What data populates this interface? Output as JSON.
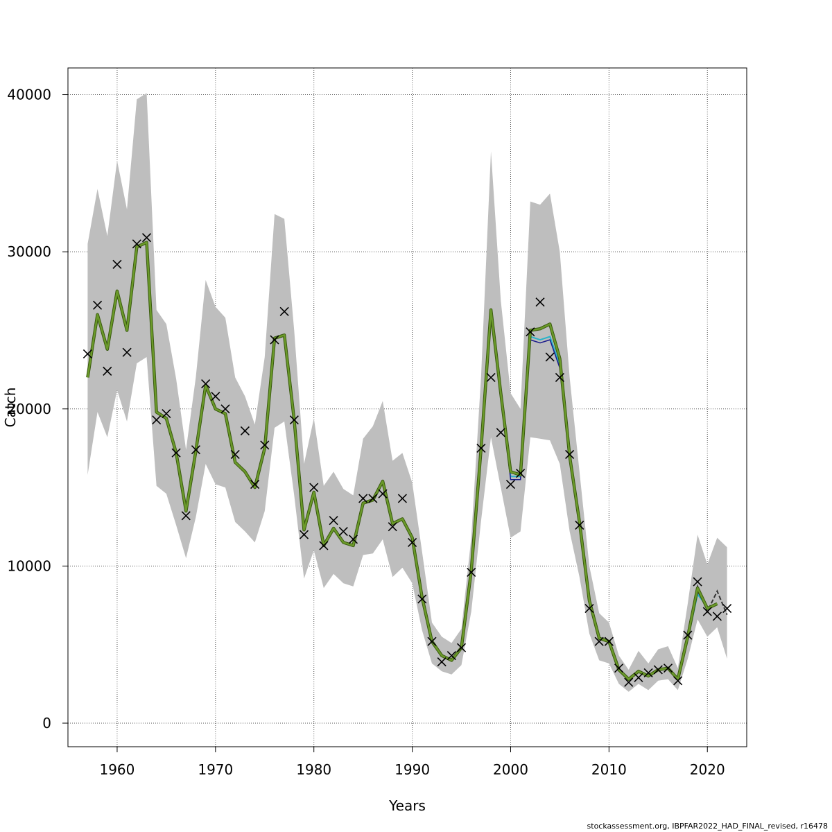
{
  "footer": "stockassessment.org, IBPFAR2022_HAD_FINAL_revised, r16478",
  "colors": {
    "band": "#bebebe",
    "main_line": "#6b9a2a",
    "main_line_outline": "#3a5a10",
    "alt_line_1": "#1a1a8c",
    "alt_line_2": "#29b3c9",
    "observed_marker": "#000000",
    "grid": "#555555"
  },
  "chart_data": {
    "type": "line",
    "xlabel": "Years",
    "ylabel": "Catch",
    "xlim": [
      1955,
      2024
    ],
    "ylim": [
      -1500,
      41700
    ],
    "xticks": [
      1960,
      1970,
      1980,
      1990,
      2000,
      2010,
      2020
    ],
    "yticks": [
      0,
      10000,
      20000,
      30000,
      40000
    ],
    "grid": true,
    "years": [
      1957,
      1958,
      1959,
      1960,
      1961,
      1962,
      1963,
      1964,
      1965,
      1966,
      1967,
      1968,
      1969,
      1970,
      1971,
      1972,
      1973,
      1974,
      1975,
      1976,
      1977,
      1978,
      1979,
      1980,
      1981,
      1982,
      1983,
      1984,
      1985,
      1986,
      1987,
      1988,
      1989,
      1990,
      1991,
      1992,
      1993,
      1994,
      1995,
      1996,
      1997,
      1998,
      1999,
      2000,
      2001,
      2002,
      2003,
      2004,
      2005,
      2006,
      2007,
      2008,
      2009,
      2010,
      2011,
      2012,
      2013,
      2014,
      2015,
      2016,
      2017,
      2018,
      2019,
      2020,
      2021
    ],
    "estimate": [
      22000,
      26000,
      23800,
      27500,
      25000,
      30300,
      30600,
      19800,
      19400,
      17200,
      13500,
      17300,
      21500,
      20000,
      19700,
      16600,
      16000,
      15000,
      17500,
      24500,
      24700,
      19300,
      12300,
      14700,
      11300,
      12400,
      11500,
      11300,
      14000,
      14200,
      15400,
      12700,
      13000,
      11800,
      8000,
      5200,
      4300,
      4000,
      4800,
      9700,
      17500,
      26300,
      21000,
      16000,
      15800,
      25000,
      25100,
      25400,
      23200,
      17000,
      12800,
      7800,
      5400,
      5200,
      3400,
      2800,
      3300,
      3000,
      3400,
      3500,
      2800,
      5500,
      8600,
      7300,
      7600
    ],
    "alt_runs": [
      {
        "years": [
          1999,
          2000,
          2001,
          2002,
          2003,
          2004,
          2005,
          2006
        ],
        "values": [
          21000,
          15700,
          15700,
          24600,
          24400,
          24600,
          22800,
          17000
        ]
      },
      {
        "years": [
          2017,
          2018,
          2019,
          2020,
          2021,
          2022
        ],
        "values": [
          2800,
          5500,
          8700,
          7100,
          8400,
          6900
        ]
      }
    ],
    "band_years": [
      1957,
      1958,
      1959,
      1960,
      1961,
      1962,
      1963,
      1964,
      1965,
      1966,
      1967,
      1968,
      1969,
      1970,
      1971,
      1972,
      1973,
      1974,
      1975,
      1976,
      1977,
      1978,
      1979,
      1980,
      1981,
      1982,
      1983,
      1984,
      1985,
      1986,
      1987,
      1988,
      1989,
      1990,
      1991,
      1992,
      1993,
      1994,
      1995,
      1996,
      1997,
      1998,
      1999,
      2000,
      2001,
      2002,
      2003,
      2004,
      2005,
      2006,
      2007,
      2008,
      2009,
      2010,
      2011,
      2012,
      2013,
      2014,
      2015,
      2016,
      2017,
      2018,
      2019,
      2020,
      2021,
      2022
    ],
    "band_upper": [
      30500,
      34000,
      31000,
      35800,
      32700,
      39700,
      40100,
      26300,
      25400,
      21900,
      17400,
      22000,
      28200,
      26500,
      25800,
      22000,
      20800,
      19000,
      23300,
      32400,
      32100,
      25000,
      16500,
      19400,
      15100,
      16000,
      14900,
      14500,
      18100,
      18900,
      20500,
      16700,
      17200,
      15300,
      10900,
      6400,
      5500,
      5100,
      6000,
      11800,
      22100,
      36400,
      26900,
      21000,
      20000,
      33200,
      33000,
      33700,
      30000,
      22000,
      16000,
      10000,
      7000,
      6400,
      4300,
      3400,
      4600,
      3800,
      4700,
      4900,
      3500,
      7600,
      12000,
      10100,
      11800,
      11200
    ],
    "band_lower": [
      15800,
      19800,
      18200,
      21200,
      19200,
      22900,
      23300,
      15100,
      14600,
      12600,
      10500,
      13100,
      16500,
      15200,
      15000,
      12800,
      12200,
      11500,
      13500,
      18800,
      19200,
      14500,
      9200,
      11000,
      8600,
      9500,
      8900,
      8700,
      10700,
      10800,
      11700,
      9300,
      9900,
      8900,
      5900,
      3800,
      3300,
      3100,
      3700,
      7100,
      12900,
      18200,
      15000,
      11800,
      12200,
      18200,
      18100,
      18000,
      16500,
      12200,
      9300,
      5700,
      4000,
      3800,
      2500,
      2000,
      2500,
      2100,
      2700,
      2800,
      2100,
      4100,
      6600,
      5500,
      6100,
      4100
    ],
    "observed": {
      "years": [
        1957,
        1958,
        1959,
        1960,
        1961,
        1962,
        1963,
        1964,
        1965,
        1966,
        1967,
        1968,
        1969,
        1970,
        1971,
        1972,
        1973,
        1974,
        1975,
        1976,
        1977,
        1978,
        1979,
        1980,
        1981,
        1982,
        1983,
        1984,
        1985,
        1986,
        1987,
        1988,
        1989,
        1990,
        1991,
        1992,
        1993,
        1994,
        1995,
        1996,
        1997,
        1998,
        1999,
        2000,
        2001,
        2002,
        2003,
        2004,
        2005,
        2006,
        2007,
        2008,
        2009,
        2010,
        2011,
        2012,
        2013,
        2014,
        2015,
        2016,
        2017,
        2018,
        2019,
        2020,
        2021,
        2022
      ],
      "values": [
        23500,
        26600,
        22400,
        29200,
        23600,
        30500,
        30900,
        19300,
        19700,
        17200,
        13200,
        17400,
        21600,
        20800,
        20000,
        17100,
        18600,
        15200,
        17700,
        24400,
        26200,
        19300,
        12000,
        15000,
        11300,
        12900,
        12200,
        11700,
        14300,
        14300,
        14600,
        12500,
        14300,
        11500,
        7900,
        5200,
        3900,
        4300,
        4800,
        9600,
        17500,
        22000,
        18500,
        15200,
        15900,
        24900,
        26800,
        23300,
        22000,
        17100,
        12600,
        7300,
        5200,
        5200,
        3500,
        2600,
        2900,
        3200,
        3400,
        3500,
        2700,
        5600,
        9000,
        7100,
        6800,
        7300
      ]
    }
  }
}
